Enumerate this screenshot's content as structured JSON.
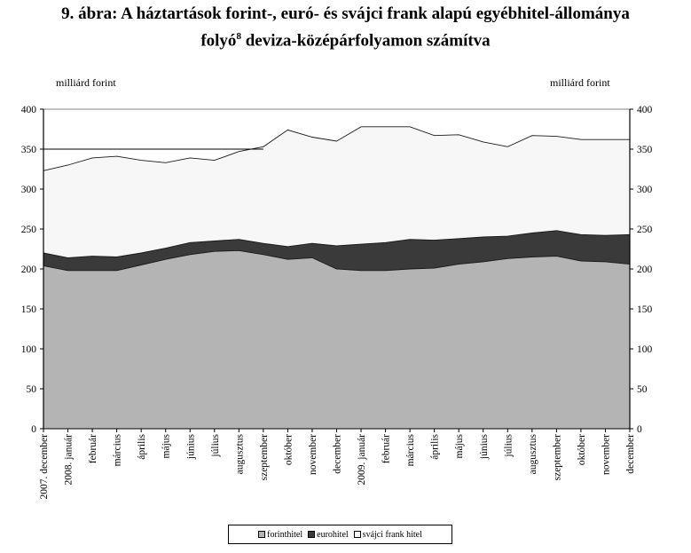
{
  "title_line1": "9. ábra: A háztartások forint-, euró- és svájci frank alapú egyébhitel-állománya",
  "title_line2_pre": "folyó",
  "title_line2_sup": "8",
  "title_line2_post": " deviza-középárfolyamon számítva",
  "unit_left": "milliárd forint",
  "unit_right": "milliárd forint",
  "colors": {
    "forint": "#b4b4b4",
    "euro": "#3a3a3a",
    "chf": "#f7f7f7"
  },
  "chart_data": {
    "type": "area",
    "stacked": true,
    "ylim": [
      0,
      400
    ],
    "yticks": [
      0,
      50,
      100,
      150,
      200,
      250,
      300,
      350,
      400
    ],
    "categories": [
      "2007. december",
      "2008. január",
      "február",
      "március",
      "április",
      "május",
      "június",
      "július",
      "augusztus",
      "szeptember",
      "október",
      "november",
      "december",
      "2009. január",
      "február",
      "március",
      "április",
      "május",
      "június",
      "július",
      "augusztus",
      "szeptember",
      "október",
      "november",
      "december"
    ],
    "series": [
      {
        "name": "forinthitel",
        "values": [
          204,
          198,
          198,
          198,
          205,
          212,
          218,
          222,
          223,
          218,
          212,
          214,
          200,
          198,
          198,
          200,
          201,
          206,
          209,
          213,
          215,
          216,
          210,
          209,
          206
        ]
      },
      {
        "name": "eurohitel",
        "values": [
          16,
          16,
          18,
          17,
          15,
          14,
          15,
          13,
          14,
          14,
          16,
          18,
          29,
          33,
          35,
          37,
          35,
          32,
          31,
          28,
          30,
          32,
          33,
          33,
          37
        ]
      },
      {
        "name": "svájci frank hitel",
        "values": [
          103,
          116,
          123,
          126,
          116,
          107,
          106,
          101,
          110,
          121,
          146,
          133,
          131,
          147,
          145,
          141,
          131,
          130,
          119,
          112,
          122,
          118,
          119,
          120,
          119
        ]
      }
    ],
    "legend_position": "bottom"
  }
}
